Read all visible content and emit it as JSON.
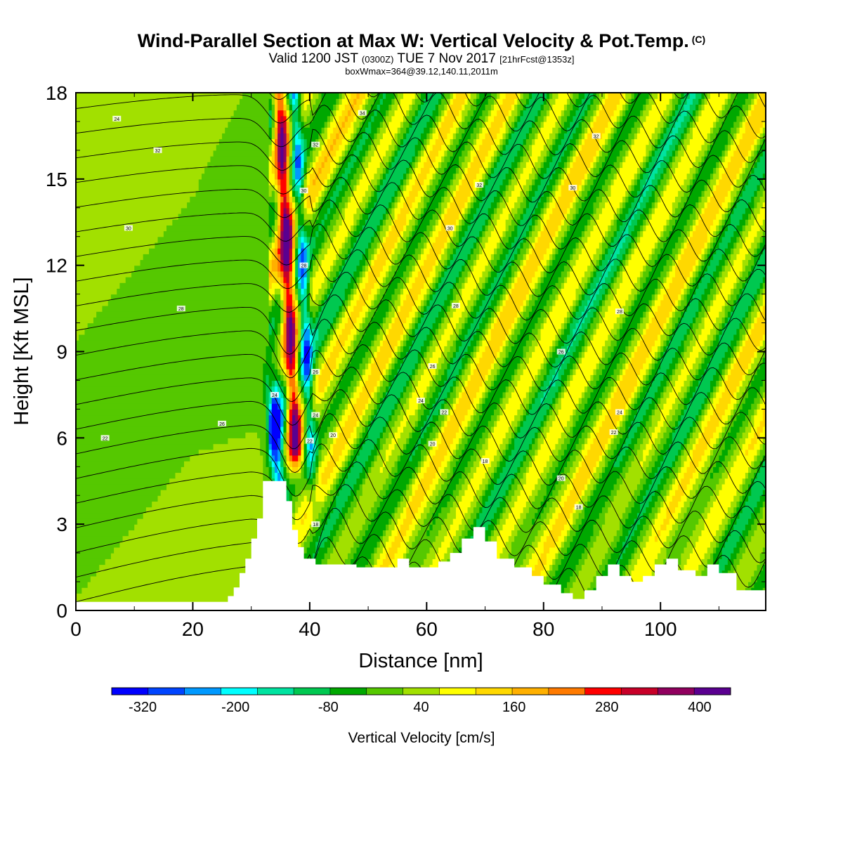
{
  "title": {
    "main": "Wind-Parallel Section at Max W: Vertical Velocity & Pot.Temp.",
    "corner_mark": "(C)",
    "valid_prefix": "Valid 1200 JST",
    "valid_utc": "(0300Z)",
    "valid_date": "TUE 7 Nov 2017",
    "forecast": "[21hrFcst@1353z]",
    "box_info": "boxWmax=364@39.12,140.11,2011m"
  },
  "chart_data": {
    "type": "heatmap",
    "xlabel": "Distance [nm]",
    "ylabel": "Height [Kft MSL]",
    "xlim": [
      0,
      118
    ],
    "ylim": [
      0,
      18
    ],
    "x_ticks": [
      0,
      20,
      40,
      60,
      80,
      100
    ],
    "y_ticks": [
      0,
      3,
      6,
      9,
      12,
      15,
      18
    ],
    "colorbar": {
      "label": "Vertical Velocity [cm/s]",
      "colors": [
        "#0000ff",
        "#0044ff",
        "#0099ff",
        "#00ffff",
        "#00e3a0",
        "#00c850",
        "#00a800",
        "#55c800",
        "#a2e000",
        "#ffff00",
        "#ffd800",
        "#ffb000",
        "#ff7a00",
        "#ff0000",
        "#c80028",
        "#90005e",
        "#5a0090"
      ],
      "tick_labels": [
        "-320",
        "-200",
        "-80",
        "40",
        "160",
        "280",
        "400"
      ],
      "tick_values": [
        -320,
        -200,
        -80,
        40,
        160,
        280,
        400
      ],
      "min": -360,
      "max": 440
    },
    "terrain_kft": [
      [
        0,
        0.3
      ],
      [
        25,
        0.3
      ],
      [
        26,
        0.5
      ],
      [
        27,
        0.8
      ],
      [
        28,
        1.3
      ],
      [
        29,
        1.8
      ],
      [
        30,
        2.5
      ],
      [
        31,
        3.2
      ],
      [
        32,
        4.5
      ],
      [
        35,
        4.5
      ],
      [
        36,
        3.8
      ],
      [
        37,
        2.8
      ],
      [
        38,
        2.2
      ],
      [
        39,
        1.8
      ],
      [
        41,
        1.6
      ],
      [
        45,
        1.6
      ],
      [
        48,
        1.5
      ],
      [
        52,
        1.5
      ],
      [
        55,
        1.8
      ],
      [
        57,
        1.5
      ],
      [
        60,
        1.5
      ],
      [
        62,
        1.7
      ],
      [
        64,
        2.0
      ],
      [
        66,
        2.5
      ],
      [
        68,
        2.9
      ],
      [
        70,
        2.4
      ],
      [
        72,
        1.8
      ],
      [
        75,
        1.5
      ],
      [
        78,
        1.2
      ],
      [
        80,
        0.9
      ],
      [
        83,
        0.6
      ],
      [
        85,
        0.4
      ],
      [
        87,
        0.7
      ],
      [
        89,
        1.2
      ],
      [
        91,
        1.6
      ],
      [
        93,
        1.2
      ],
      [
        95,
        1.0
      ],
      [
        97,
        1.2
      ],
      [
        99,
        1.6
      ],
      [
        101,
        1.8
      ],
      [
        103,
        1.4
      ],
      [
        106,
        1.2
      ],
      [
        108,
        1.6
      ],
      [
        110,
        1.3
      ],
      [
        113,
        0.7
      ],
      [
        118,
        0.7
      ]
    ],
    "theta_isotherm_labels": [
      {
        "x": 7,
        "y": 17.1,
        "value": "24"
      },
      {
        "x": 14,
        "y": 16.0,
        "value": "32"
      },
      {
        "x": 9,
        "y": 13.3,
        "value": "30"
      },
      {
        "x": 18,
        "y": 10.5,
        "value": "28"
      },
      {
        "x": 25,
        "y": 6.5,
        "value": "26"
      },
      {
        "x": 5,
        "y": 6.0,
        "value": "22"
      },
      {
        "x": 49,
        "y": 17.3,
        "value": "34"
      },
      {
        "x": 41,
        "y": 16.2,
        "value": "32"
      },
      {
        "x": 39,
        "y": 14.6,
        "value": "30"
      },
      {
        "x": 39,
        "y": 12.0,
        "value": "28"
      },
      {
        "x": 41,
        "y": 8.3,
        "value": "26"
      },
      {
        "x": 34,
        "y": 7.5,
        "value": "24"
      },
      {
        "x": 41,
        "y": 6.8,
        "value": "24"
      },
      {
        "x": 40,
        "y": 5.9,
        "value": "22"
      },
      {
        "x": 44,
        "y": 6.1,
        "value": "20"
      },
      {
        "x": 41,
        "y": 3.0,
        "value": "18"
      },
      {
        "x": 69,
        "y": 14.8,
        "value": "32"
      },
      {
        "x": 64,
        "y": 13.3,
        "value": "30"
      },
      {
        "x": 65,
        "y": 10.6,
        "value": "28"
      },
      {
        "x": 61,
        "y": 8.5,
        "value": "26"
      },
      {
        "x": 59,
        "y": 7.3,
        "value": "24"
      },
      {
        "x": 63,
        "y": 6.9,
        "value": "22"
      },
      {
        "x": 61,
        "y": 5.8,
        "value": "20"
      },
      {
        "x": 70,
        "y": 5.2,
        "value": "18"
      },
      {
        "x": 89,
        "y": 16.5,
        "value": "32"
      },
      {
        "x": 85,
        "y": 14.7,
        "value": "30"
      },
      {
        "x": 93,
        "y": 10.4,
        "value": "28"
      },
      {
        "x": 83,
        "y": 9.0,
        "value": "26"
      },
      {
        "x": 93,
        "y": 6.9,
        "value": "24"
      },
      {
        "x": 92,
        "y": 6.2,
        "value": "22"
      },
      {
        "x": 83,
        "y": 4.6,
        "value": "20"
      },
      {
        "x": 86,
        "y": 3.6,
        "value": "18"
      }
    ],
    "velocity_features": [
      {
        "x": 0,
        "y_top": 18,
        "y_bottom": 0,
        "value": 20
      },
      {
        "x": 38,
        "y_top": 18,
        "y_bottom": 4.5,
        "value": 340
      },
      {
        "x": 34,
        "y_top": 9,
        "y_bottom": 4.5,
        "value": -300
      },
      {
        "x": 40,
        "y_top": 16,
        "y_bottom": 5,
        "value": -200
      }
    ]
  }
}
